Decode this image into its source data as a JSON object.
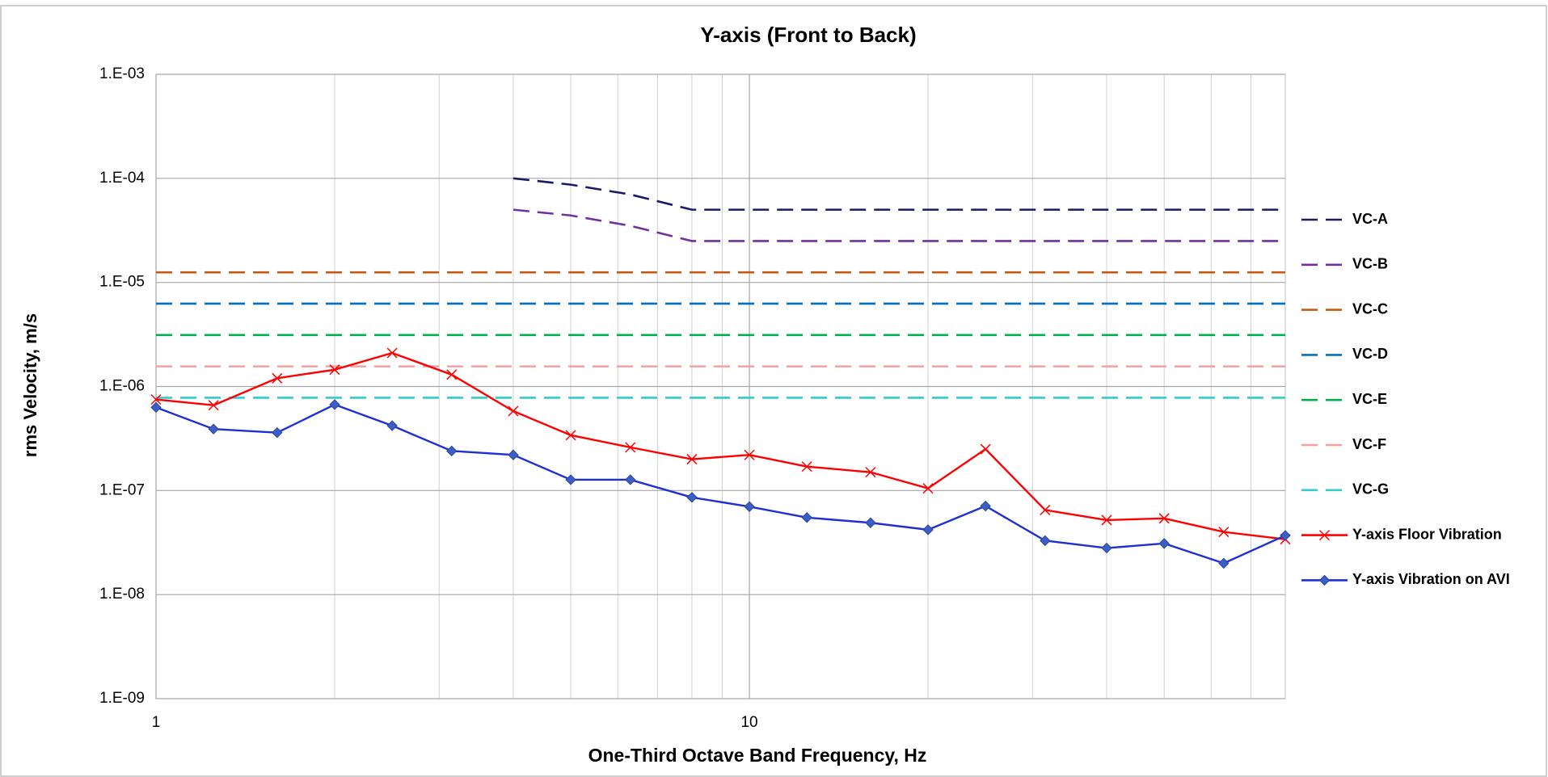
{
  "chart_data": {
    "type": "line",
    "title": "Y-axis (Front to Back)",
    "xlabel": "One-Third Octave Band Frequency, Hz",
    "ylabel": "rms Velocity, m/s",
    "xlog": true,
    "ylog": true,
    "grid": true,
    "legend": "right",
    "xlim": [
      1,
      80
    ],
    "xticks": [
      1,
      10
    ],
    "x_minor_grid": [
      2,
      3,
      4,
      5,
      6,
      7,
      8,
      9,
      20,
      30,
      40,
      50,
      60,
      70
    ],
    "ylim": [
      1e-09,
      0.001
    ],
    "yticks": [
      {
        "value": 1e-09,
        "label": "1.E-09"
      },
      {
        "value": 1e-08,
        "label": "1.E-08"
      },
      {
        "value": 1e-07,
        "label": "1.E-07"
      },
      {
        "value": 1e-06,
        "label": "1.E-06"
      },
      {
        "value": 1e-05,
        "label": "1.E-05"
      },
      {
        "value": 0.0001,
        "label": "1.E-04"
      },
      {
        "value": 0.001,
        "label": "1.E-03"
      }
    ],
    "series": [
      {
        "name": "VC-A",
        "color": "#1a1a66",
        "dashed": true,
        "x": [
          4,
          5,
          6.3,
          8,
          10,
          12.5,
          16,
          20,
          25,
          31.5,
          40,
          50,
          63,
          80
        ],
        "values": [
          0.0001,
          8.7e-05,
          7e-05,
          5e-05,
          5e-05,
          5e-05,
          5e-05,
          5e-05,
          5e-05,
          5e-05,
          5e-05,
          5e-05,
          5e-05,
          5e-05
        ]
      },
      {
        "name": "VC-B",
        "color": "#7030a0",
        "dashed": true,
        "x": [
          4,
          5,
          6.3,
          8,
          10,
          12.5,
          16,
          20,
          25,
          31.5,
          40,
          50,
          63,
          80
        ],
        "values": [
          5e-05,
          4.4e-05,
          3.5e-05,
          2.5e-05,
          2.5e-05,
          2.5e-05,
          2.5e-05,
          2.5e-05,
          2.5e-05,
          2.5e-05,
          2.5e-05,
          2.5e-05,
          2.5e-05,
          2.5e-05
        ]
      },
      {
        "name": "VC-C",
        "color": "#c55a11",
        "dashed": true,
        "x": [
          1,
          80
        ],
        "values": [
          1.25e-05,
          1.25e-05
        ]
      },
      {
        "name": "VC-D",
        "color": "#0070c0",
        "dashed": true,
        "x": [
          1,
          80
        ],
        "values": [
          6.25e-06,
          6.25e-06
        ]
      },
      {
        "name": "VC-E",
        "color": "#00b050",
        "dashed": true,
        "x": [
          1,
          80
        ],
        "values": [
          3.12e-06,
          3.12e-06
        ]
      },
      {
        "name": "VC-F",
        "color": "#f4a0a0",
        "dashed": true,
        "x": [
          1,
          80
        ],
        "values": [
          1.56e-06,
          1.56e-06
        ]
      },
      {
        "name": "VC-G",
        "color": "#33cccc",
        "dashed": true,
        "x": [
          1,
          80
        ],
        "values": [
          7.8e-07,
          7.8e-07
        ]
      },
      {
        "name": "Y-axis Floor Vibration",
        "color": "#ff0000",
        "marker": "x",
        "x": [
          1,
          1.25,
          1.6,
          2,
          2.5,
          3.15,
          4,
          5,
          6.3,
          8,
          10,
          12.5,
          16,
          20,
          25,
          31.5,
          40,
          50,
          63,
          80
        ],
        "values": [
          7.5e-07,
          6.6e-07,
          1.2e-06,
          1.45e-06,
          2.1e-06,
          1.3e-06,
          5.8e-07,
          3.4e-07,
          2.6e-07,
          2e-07,
          2.2e-07,
          1.7e-07,
          1.5e-07,
          1.05e-07,
          2.5e-07,
          6.5e-08,
          5.2e-08,
          5.4e-08,
          4e-08,
          3.4e-08
        ]
      },
      {
        "name": "Y-axis Vibration on AVI",
        "color": "#1f2fd6",
        "marker": "diamond",
        "x": [
          1,
          1.25,
          1.6,
          2,
          2.5,
          3.15,
          4,
          5,
          6.3,
          8,
          10,
          12.5,
          16,
          20,
          25,
          31.5,
          40,
          50,
          63,
          80
        ],
        "values": [
          6.3e-07,
          3.9e-07,
          3.6e-07,
          6.7e-07,
          4.2e-07,
          2.4e-07,
          2.2e-07,
          1.27e-07,
          1.27e-07,
          8.6e-08,
          7e-08,
          5.5e-08,
          4.9e-08,
          4.2e-08,
          7.1e-08,
          3.3e-08,
          2.8e-08,
          3.1e-08,
          2e-08,
          3.7e-08
        ]
      }
    ]
  }
}
